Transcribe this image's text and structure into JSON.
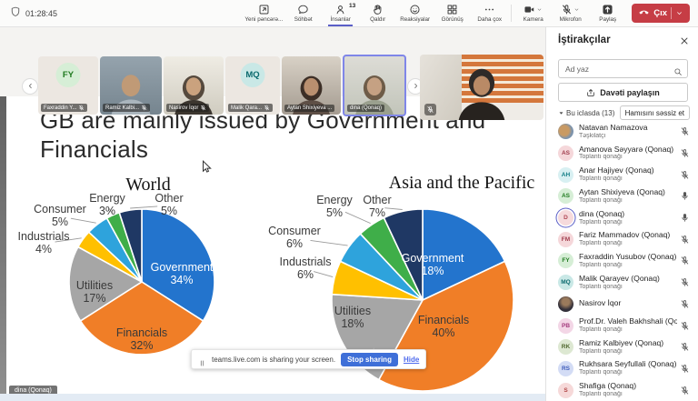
{
  "toolbar": {
    "timer": "01:28:45",
    "buttons": [
      {
        "label": "Yeni pəncərə...",
        "icon": "new-window-icon"
      },
      {
        "label": "Söhbət",
        "icon": "chat-icon"
      },
      {
        "label": "İnsanlar",
        "icon": "people-icon",
        "badge": "13",
        "active": true
      },
      {
        "label": "Qaldır",
        "icon": "raise-hand-icon"
      },
      {
        "label": "Reaksiyalar",
        "icon": "reactions-icon"
      },
      {
        "label": "Görünüş",
        "icon": "grid-icon"
      },
      {
        "label": "Daha çox",
        "icon": "more-icon"
      }
    ],
    "device_buttons": [
      {
        "label": "Kamera",
        "icon": "camera-icon",
        "chevron": true
      },
      {
        "label": "Mikrofon",
        "icon": "mic-off-icon",
        "chevron": true
      },
      {
        "label": "Paylaş",
        "icon": "share-screen-icon"
      }
    ],
    "leave": {
      "label": "Çıx"
    }
  },
  "video_strip": {
    "tiles": [
      {
        "name": "Faxraddin Y...",
        "kind": "initials",
        "initials": "FY",
        "bg": "#d6eed6",
        "fg": "#1f7a1f",
        "muted": true
      },
      {
        "name": "Ramiz Kalbi...",
        "kind": "video",
        "muted": true
      },
      {
        "name": "Nasirov İqor",
        "kind": "video",
        "muted": true
      },
      {
        "name": "Malik Qara...",
        "kind": "initials",
        "initials": "MQ",
        "bg": "#c9e8e6",
        "fg": "#0b6a6e",
        "muted": true
      },
      {
        "name": "Aytan Shixiyeva ...",
        "kind": "video",
        "muted": false
      },
      {
        "name": "dina (Qonaq)",
        "kind": "video",
        "muted": false,
        "speaking": true
      }
    ],
    "large_tile": {
      "muted": true
    }
  },
  "sidebar": {
    "title": "İştirakçılar",
    "search_placeholder": "Ad yaz",
    "invite_label": "Davəti paylaşın",
    "section_label": "Bu iclasda (13)",
    "mute_all_label": "Hamısını səssiz et",
    "participants": [
      {
        "name": "Natavan Namazova",
        "role": "Təşkilatçı",
        "avatar": "photo-warm",
        "muted": true
      },
      {
        "name": "Amanova Səyyarə (Qonaq)",
        "role": "Toplantı qonağı",
        "initials": "AS",
        "bg": "#f5d7da",
        "fg": "#9f3a4a",
        "muted": true
      },
      {
        "name": "Anar Hajiyev (Qonaq)",
        "role": "Toplantı qonağı",
        "initials": "AH",
        "bg": "#d8f0f2",
        "fg": "#0f7c84",
        "muted": true
      },
      {
        "name": "Aytan Shixiyeva (Qonaq)",
        "role": "Toplantı qonağı",
        "initials": "AS",
        "bg": "#d6eed6",
        "fg": "#1f7a1f",
        "muted": false
      },
      {
        "name": "dina (Qonaq)",
        "role": "Toplantı qonağı",
        "initials": "D",
        "bg": "#f6dadc",
        "fg": "#b04552",
        "muted": false,
        "speaking": true
      },
      {
        "name": "Fariz Mammadov (Qonaq)",
        "role": "Toplantı qonağı",
        "initials": "FM",
        "bg": "#f5d7da",
        "fg": "#9f3a4a",
        "muted": true
      },
      {
        "name": "Faxraddin Yusubov (Qonaq)",
        "role": "Toplantı qonağı",
        "initials": "FY",
        "bg": "#d6eed6",
        "fg": "#1f7a1f",
        "muted": true
      },
      {
        "name": "Malik Qarayev (Qonaq)",
        "role": "Toplantı qonağı",
        "initials": "MQ",
        "bg": "#c9e8e6",
        "fg": "#0b6a6e",
        "muted": true
      },
      {
        "name": "Nasirov İqor",
        "role": "",
        "avatar": "photo-dark",
        "muted": true
      },
      {
        "name": "Prof.Dr. Valeh Bakhshali (Qonaq)",
        "role": "Toplantı qonağı",
        "initials": "PB",
        "bg": "#f3d6e6",
        "fg": "#a43a7d",
        "muted": true
      },
      {
        "name": "Ramiz Kalbiyev (Qonaq)",
        "role": "Toplantı qonağı",
        "initials": "RK",
        "bg": "#dde8d2",
        "fg": "#50682f",
        "muted": true
      },
      {
        "name": "Rukhsara Seyfullali (Qonaq)",
        "role": "Toplantı qonağı",
        "initials": "RS",
        "bg": "#d3dcf5",
        "fg": "#3d5bba",
        "muted": true
      },
      {
        "name": "Shafiga (Qonaq)",
        "role": "Toplantı qonağı",
        "initials": "S",
        "bg": "#f6d9d9",
        "fg": "#b04545",
        "muted": true
      }
    ]
  },
  "stage": {
    "slide_title": "GB are mainly issued by Government and Financials",
    "speaker_label": "dina (Qonaq)",
    "share_banner": {
      "message": "teams.live.com is sharing your screen.",
      "stop_label": "Stop sharing",
      "hide_label": "Hide"
    }
  },
  "chart_data": [
    {
      "type": "pie",
      "title": "World",
      "categories": [
        "Government",
        "Financials",
        "Utilities",
        "Industrials",
        "Consumer",
        "Energy",
        "Other"
      ],
      "values": [
        34,
        32,
        17,
        4,
        5,
        3,
        5
      ],
      "unit": "%",
      "colors": [
        "#2374cd",
        "#f07e27",
        "#a6a6a6",
        "#ffc000",
        "#2ea3dc",
        "#3fae49",
        "#1f3864"
      ],
      "labels_inside": [
        "Government",
        "Financials",
        "Utilities"
      ],
      "legend": "none"
    },
    {
      "type": "pie",
      "title": "Asia and the Pacific",
      "categories": [
        "Government",
        "Financials",
        "Utilities",
        "Industrials",
        "Consumer",
        "Energy",
        "Other"
      ],
      "values": [
        18,
        40,
        18,
        6,
        6,
        5,
        7
      ],
      "unit": "%",
      "colors": [
        "#2374cd",
        "#f07e27",
        "#a6a6a6",
        "#ffc000",
        "#2ea3dc",
        "#3fae49",
        "#1f3864"
      ],
      "labels_inside": [
        "Government",
        "Financials",
        "Utilities"
      ],
      "legend": "none"
    }
  ]
}
